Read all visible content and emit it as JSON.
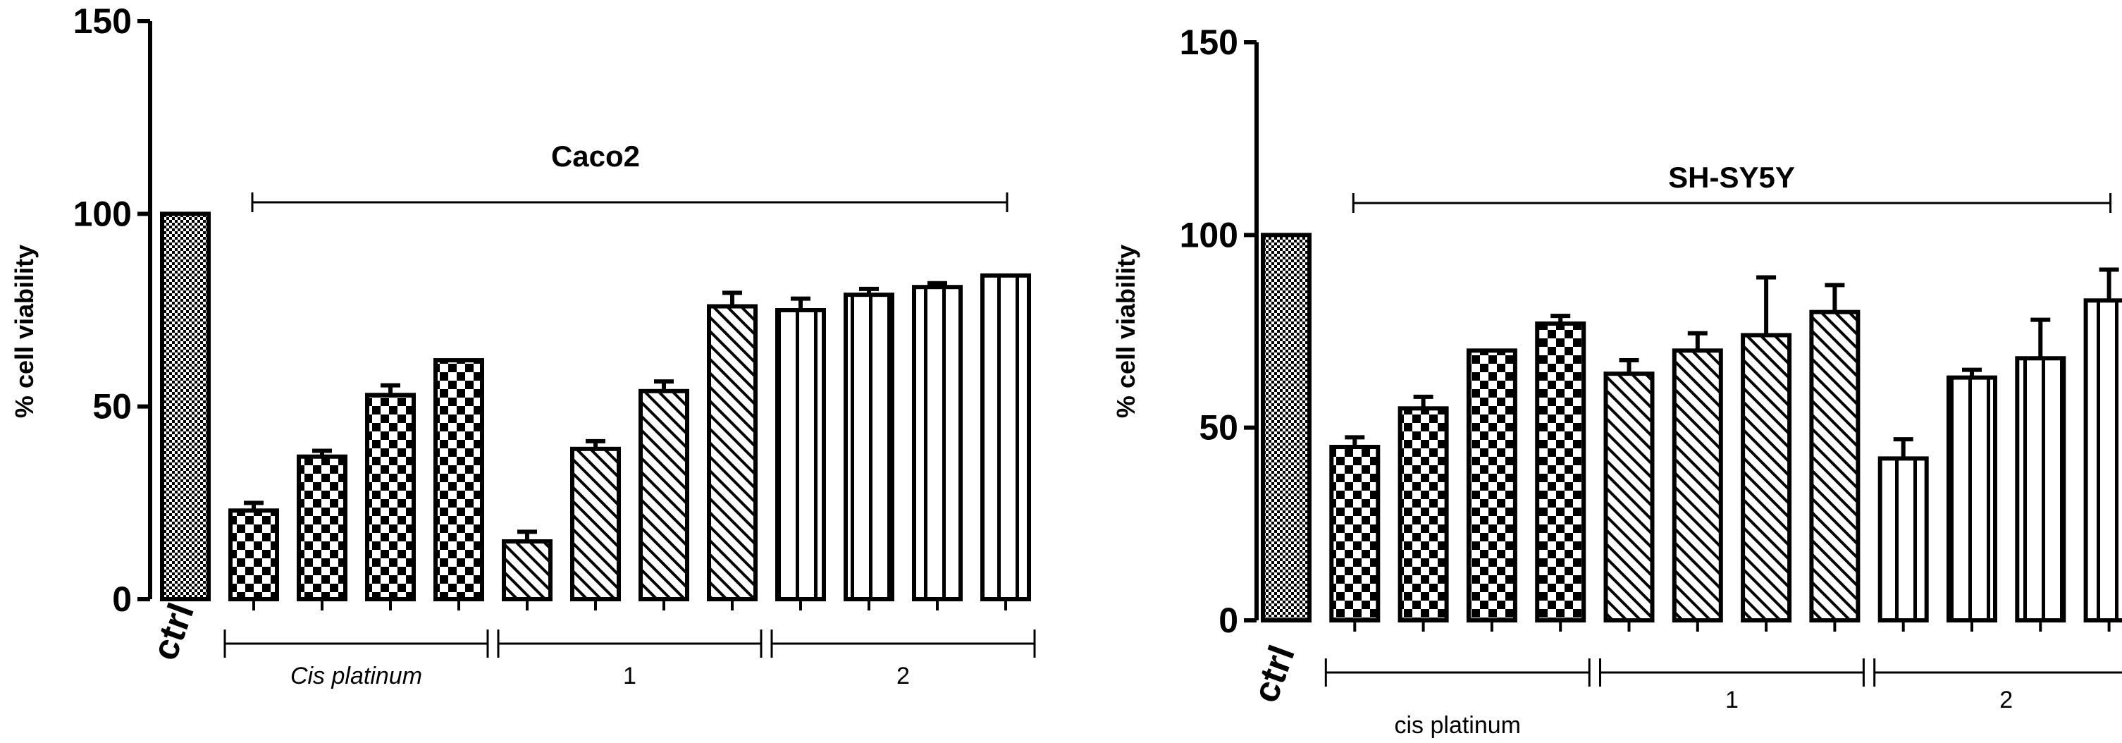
{
  "chart_data": [
    {
      "type": "bar",
      "title": "Caco2",
      "ylabel": "% cell viability",
      "ylim": [
        0,
        150
      ],
      "yticks": [
        0,
        50,
        100,
        150
      ],
      "grid": false,
      "categories": [
        "ctrl",
        "",
        "",
        "",
        "",
        "",
        "",
        "",
        "",
        "",
        "",
        "",
        ""
      ],
      "values": [
        100,
        23,
        37,
        53,
        62,
        15,
        39,
        54,
        76,
        75,
        79,
        81,
        84
      ],
      "errors": [
        0,
        2,
        1.5,
        2.5,
        0,
        2.5,
        2,
        2.5,
        3.5,
        3,
        1.5,
        1,
        0
      ],
      "patterns": [
        "dots",
        "checker",
        "checker",
        "checker",
        "checker",
        "hatch",
        "hatch",
        "hatch",
        "hatch",
        "stripes",
        "stripes",
        "stripes",
        "stripes"
      ],
      "groups": [
        {
          "label": "Cis platinum",
          "italic": true,
          "start_index": 1,
          "end_index": 4
        },
        {
          "label": "1",
          "italic": false,
          "start_index": 5,
          "end_index": 8
        },
        {
          "label": "2",
          "italic": false,
          "start_index": 9,
          "end_index": 12
        }
      ],
      "bracket": {
        "start_index": 1,
        "end_index": 12
      }
    },
    {
      "type": "bar",
      "title": "SH-SY5Y",
      "ylabel": "% cell viability",
      "ylim": [
        0,
        150
      ],
      "yticks": [
        0,
        50,
        100,
        150
      ],
      "grid": false,
      "categories": [
        "ctrl",
        "",
        "",
        "",
        "",
        "",
        "",
        "",
        "",
        "",
        "",
        "",
        ""
      ],
      "values": [
        100,
        45,
        55,
        70,
        77,
        64,
        70,
        74,
        80,
        42,
        63,
        68,
        83
      ],
      "errors": [
        0,
        2.5,
        3,
        0,
        2,
        3.5,
        4.5,
        15,
        7,
        5,
        2,
        10,
        8
      ],
      "patterns": [
        "dots",
        "checker",
        "checker",
        "checker",
        "checker",
        "hatch",
        "hatch",
        "hatch",
        "hatch",
        "stripes",
        "stripes",
        "stripes",
        "stripes"
      ],
      "groups": [
        {
          "label": "cis platinum",
          "italic": false,
          "start_index": 1,
          "end_index": 4
        },
        {
          "label": "1",
          "italic": false,
          "start_index": 5,
          "end_index": 8
        },
        {
          "label": "2",
          "italic": false,
          "start_index": 9,
          "end_index": 12
        }
      ],
      "bracket": {
        "start_index": 1,
        "end_index": 12
      }
    }
  ]
}
